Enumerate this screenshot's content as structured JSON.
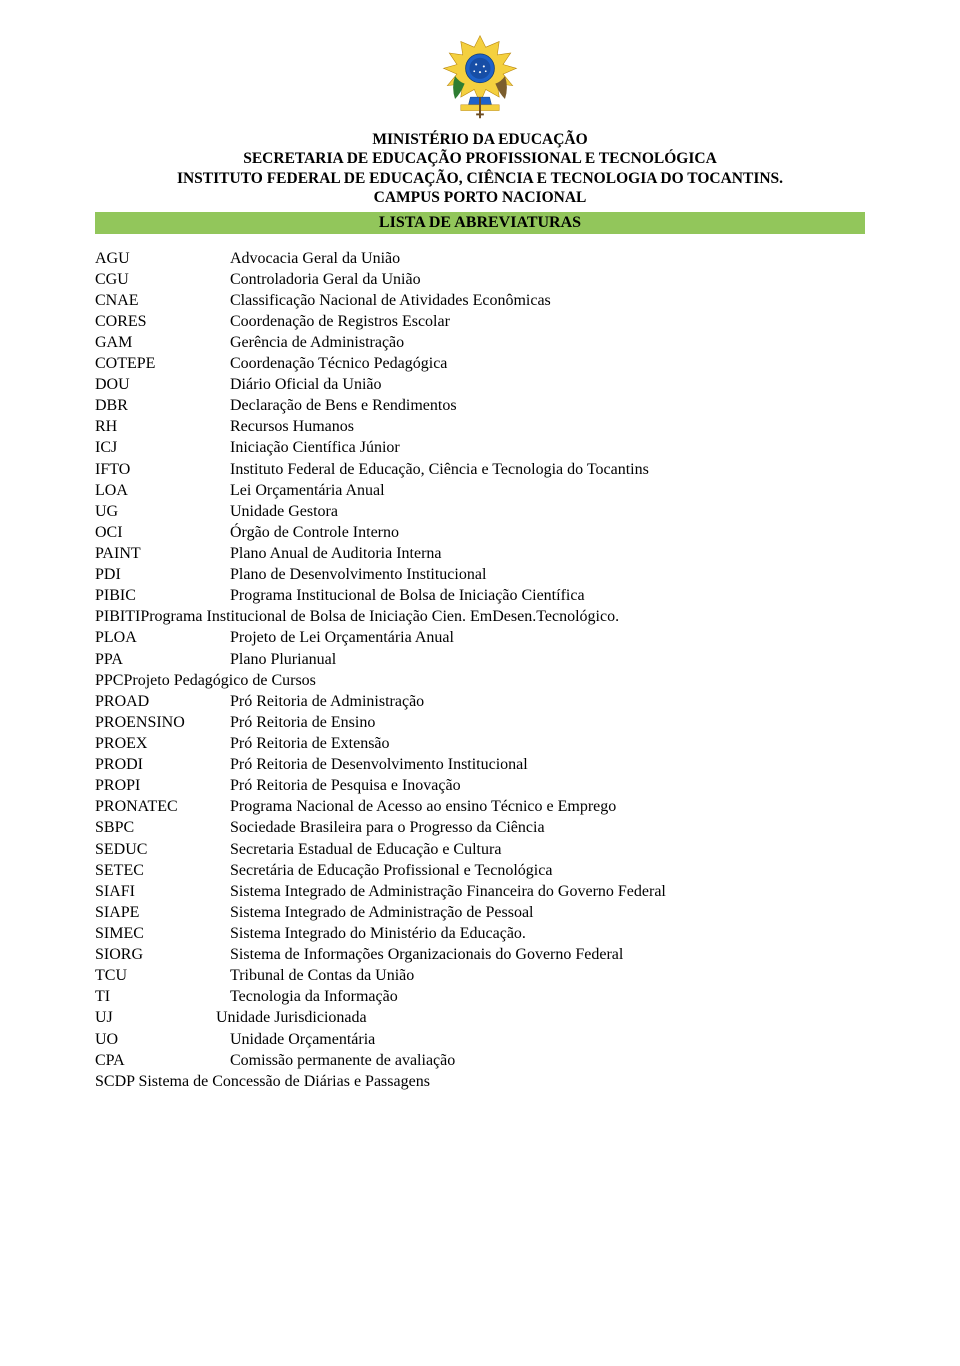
{
  "colors": {
    "title_bar_bg": "#92c65b",
    "text": "#000000",
    "page_bg": "#ffffff"
  },
  "typography": {
    "font_family": "Times New Roman",
    "header_fontsize_pt": 12,
    "body_fontsize_pt": 12,
    "header_weight": "bold"
  },
  "header": {
    "line1": "MINISTÉRIO DA EDUCAÇÃO",
    "line2": "SECRETARIA DE EDUCAÇÃO PROFISSIONAL E TECNOLÓGICA",
    "line3": "INSTITUTO FEDERAL DE EDUCAÇÃO, CIÊNCIA E TECNOLOGIA DO TOCANTINS.",
    "line4": "CAMPUS PORTO NACIONAL"
  },
  "title_bar": "LISTA DE ABREVIATURAS",
  "abbreviations": [
    {
      "key": "AGU",
      "value": "Advocacia Geral da União",
      "inline": false
    },
    {
      "key": "CGU",
      "value": "Controladoria Geral da União",
      "inline": false
    },
    {
      "key": "CNAE",
      "value": "Classificação Nacional de Atividades Econômicas",
      "inline": false
    },
    {
      "key": "CORES",
      "value": "Coordenação de Registros Escolar",
      "inline": false
    },
    {
      "key": "GAM",
      "value": "Gerência de Administração",
      "inline": false
    },
    {
      "key": "COTEPE",
      "value": "Coordenação Técnico Pedagógica",
      "inline": false
    },
    {
      "key": "DOU",
      "value": "Diário Oficial da União",
      "inline": false
    },
    {
      "key": "DBR",
      "value": "Declaração de Bens e Rendimentos",
      "inline": false
    },
    {
      "key": "RH",
      "value": "Recursos Humanos",
      "inline": false
    },
    {
      "key": "ICJ",
      "value": "Iniciação Científica Júnior",
      "inline": false
    },
    {
      "key": "IFTO",
      "value": "Instituto Federal de Educação, Ciência e Tecnologia do Tocantins",
      "inline": false
    },
    {
      "key": "LOA",
      "value": "Lei Orçamentária Anual",
      "inline": false
    },
    {
      "key": "UG",
      "value": "Unidade Gestora",
      "inline": false
    },
    {
      "key": "OCI",
      "value": "Órgão de Controle Interno",
      "inline": false
    },
    {
      "key": "PAINT",
      "value": "Plano Anual de Auditoria Interna",
      "inline": false
    },
    {
      "key": "PDI",
      "value": "Plano de Desenvolvimento Institucional",
      "inline": false
    },
    {
      "key": "PIBIC",
      "value": "Programa Institucional de Bolsa de Iniciação Científica",
      "inline": false
    },
    {
      "key": "PIBITI",
      "value": "Programa Institucional de Bolsa de Iniciação Cien. EmDesen.Tecnológico.",
      "inline": true
    },
    {
      "key": "PLOA",
      "value": "Projeto de Lei Orçamentária Anual",
      "inline": false
    },
    {
      "key": "PPA",
      "value": "Plano Plurianual",
      "inline": false
    },
    {
      "key": "PPC",
      "value": "Projeto Pedagógico de Cursos",
      "inline": true
    },
    {
      "key": "PROAD",
      "value": "Pró Reitoria de Administração",
      "inline": false
    },
    {
      "key": "PROENSINO",
      "value": "Pró Reitoria de Ensino",
      "inline": false
    },
    {
      "key": "PROEX",
      "value": "Pró Reitoria de Extensão",
      "inline": false
    },
    {
      "key": "PRODI",
      "value": "Pró Reitoria de Desenvolvimento Institucional",
      "inline": false
    },
    {
      "key": "PROPI",
      "value": "Pró Reitoria de Pesquisa e Inovação",
      "inline": false
    },
    {
      "key": "PRONATEC",
      "value": "Programa Nacional de Acesso ao ensino Técnico e Emprego",
      "inline": false
    },
    {
      "key": "SBPC",
      "value": "Sociedade Brasileira para o Progresso da Ciência",
      "inline": false
    },
    {
      "key": "SEDUC",
      "value": "Secretaria Estadual de Educação e Cultura",
      "inline": false
    },
    {
      "key": "SETEC",
      "value": "Secretária de Educação Profissional e Tecnológica",
      "inline": false
    },
    {
      "key": "SIAFI",
      "value": "Sistema Integrado de Administração Financeira do Governo Federal",
      "inline": false
    },
    {
      "key": "SIAPE",
      "value": "Sistema Integrado de Administração de Pessoal",
      "inline": false
    },
    {
      "key": "SIMEC",
      "value": "Sistema Integrado do Ministério da Educação.",
      "inline": false
    },
    {
      "key": "SIORG",
      "value": "Sistema de Informações Organizacionais do Governo Federal",
      "inline": false
    },
    {
      "key": "TCU",
      "value": "Tribunal de Contas da União",
      "inline": false
    },
    {
      "key": "TI",
      "value": "Tecnologia da Informação",
      "inline": false
    },
    {
      "key": "UJ",
      "value": "Unidade Jurisdicionada",
      "inline": false,
      "val_offset": -14
    },
    {
      "key": "UO",
      "value": "Unidade Orçamentária",
      "inline": false
    },
    {
      "key": "CPA",
      "value": "Comissão permanente de avaliação",
      "inline": false
    },
    {
      "key": "SCDP",
      "value": " Sistema de Concessão de Diárias e Passagens",
      "inline": true
    }
  ]
}
